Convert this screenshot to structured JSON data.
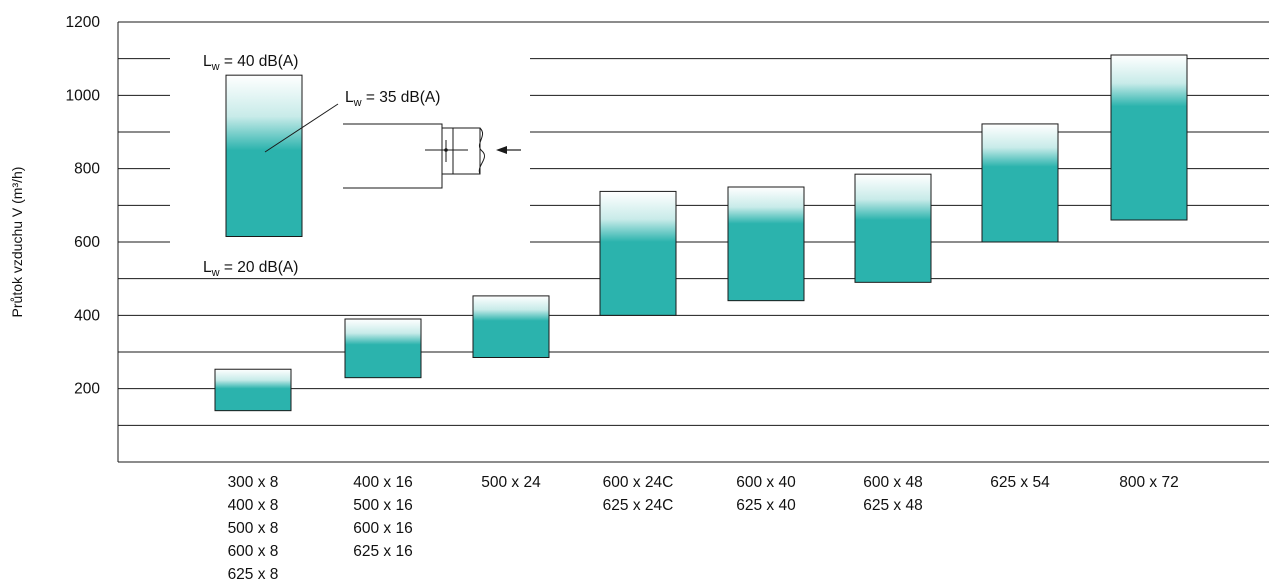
{
  "colors": {
    "bar_fill": "#2bb3ad",
    "bar_top": "#ffffff",
    "grid": "#1a1a1a",
    "frame": "#1a1a1a",
    "text": "#111111"
  },
  "chart_data": {
    "type": "bar",
    "subtype": "floating range bar with gradient",
    "ylabel": "Průtok vzduchu V (m³/h)",
    "ylim": [
      0,
      1200
    ],
    "yticks": [
      "1200",
      "1000",
      "800",
      "600",
      "400",
      "200"
    ],
    "ytick_values": [
      1200,
      1000,
      800,
      600,
      400,
      200
    ],
    "grid": true,
    "gridlines": [
      100,
      200,
      300,
      400,
      500,
      600,
      700,
      800,
      900,
      1000,
      1100
    ],
    "categories": [
      [
        "300 x 8",
        "400 x 8",
        "500 x 8",
        "600 x 8",
        "625 x 8"
      ],
      [
        "400 x 16",
        "500 x 16",
        "600 x 16",
        "625 x 16"
      ],
      [
        "500 x 24"
      ],
      [
        "600 x 24C",
        "625 x 24C"
      ],
      [
        "600 x 40",
        "625 x 40"
      ],
      [
        "600 x 48",
        "625 x 48"
      ],
      [
        "625 x 54"
      ],
      [
        "800 x 72"
      ]
    ],
    "ranges": [
      {
        "low": 140,
        "mid": 200,
        "high": 253
      },
      {
        "low": 230,
        "mid": 320,
        "high": 390
      },
      {
        "low": 285,
        "mid": 385,
        "high": 453
      },
      {
        "low": 400,
        "mid": 600,
        "high": 738
      },
      {
        "low": 440,
        "mid": 650,
        "high": 750
      },
      {
        "low": 490,
        "mid": 660,
        "high": 785
      },
      {
        "low": 600,
        "mid": 805,
        "high": 922
      },
      {
        "low": 660,
        "mid": 970,
        "high": 1110
      }
    ],
    "legend": {
      "sample_range": {
        "low": 615,
        "mid": 850,
        "high": 1055
      },
      "label_high": "L",
      "label_high_sub": "w",
      "label_high_value": " = 40 dB(A)",
      "label_mid": "L",
      "label_mid_sub": "w",
      "label_mid_value": " = 35 dB(A)",
      "label_low": "L",
      "label_low_sub": "w",
      "label_low_value": " = 20 dB(A)",
      "placement": "top-left"
    }
  }
}
